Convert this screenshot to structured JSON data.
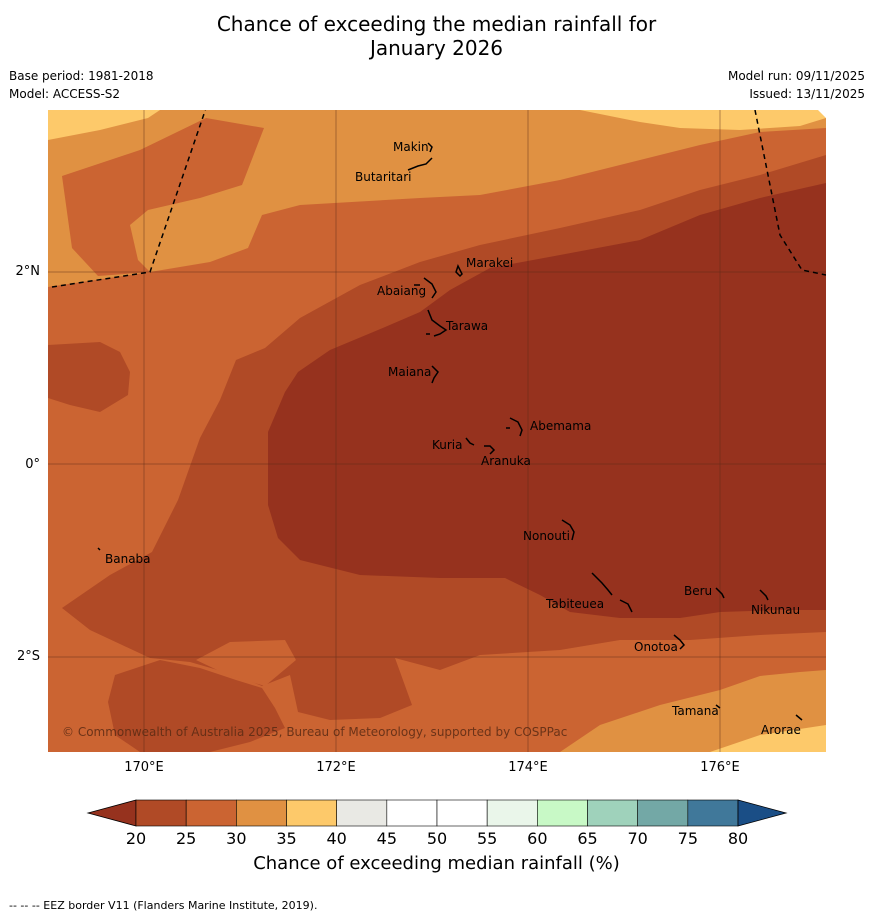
{
  "header": {
    "title_line1": "Chance of exceeding the median rainfall for",
    "title_line2": "January 2026",
    "base_period": "Base period: 1981-2018",
    "model": "Model: ACCESS-S2",
    "model_run": "Model run: 09/11/2025",
    "issued": "Issued: 13/11/2025"
  },
  "map": {
    "copyright": "© Commonwealth of Australia 2025, Bureau of Meteorology, supported by COSPPac",
    "lat_ticks": [
      "2°N",
      "0°",
      "2°S"
    ],
    "lon_ticks": [
      "170°E",
      "172°E",
      "174°E",
      "176°E"
    ],
    "places": [
      {
        "name": "Makin"
      },
      {
        "name": "Butaritari"
      },
      {
        "name": "Marakei"
      },
      {
        "name": "Abaiang"
      },
      {
        "name": "Tarawa"
      },
      {
        "name": "Maiana"
      },
      {
        "name": "Abemama"
      },
      {
        "name": "Kuria"
      },
      {
        "name": "Aranuka"
      },
      {
        "name": "Banaba"
      },
      {
        "name": "Nonouti"
      },
      {
        "name": "Beru"
      },
      {
        "name": "Tabiteuea"
      },
      {
        "name": "Nikunau"
      },
      {
        "name": "Onotoa"
      },
      {
        "name": "Tamana"
      },
      {
        "name": "Arorae"
      }
    ],
    "colors": {
      "lt20": "#96321e",
      "20_25": "#b04a26",
      "25_30": "#cb6432",
      "30_35": "#e09142",
      "35_40": "#fdc96a"
    }
  },
  "colorbar": {
    "ticks": [
      "20",
      "25",
      "30",
      "35",
      "40",
      "45",
      "50",
      "55",
      "60",
      "65",
      "70",
      "75",
      "80"
    ],
    "colors": [
      "#b04a26",
      "#cb6432",
      "#e09142",
      "#fdc96a",
      "#e9e9e4",
      "#ffffff",
      "#ffffff",
      "#eaf6ea",
      "#c8f9c6",
      "#9fd2bb",
      "#73a8a6",
      "#40789a"
    ],
    "under_color": "#96321e",
    "over_color": "#1a4e86",
    "label": "Chance of exceeding median rainfall (%)"
  },
  "footnote": "-- -- -- EEZ border V11 (Flanders Marine Institute, 2019)."
}
